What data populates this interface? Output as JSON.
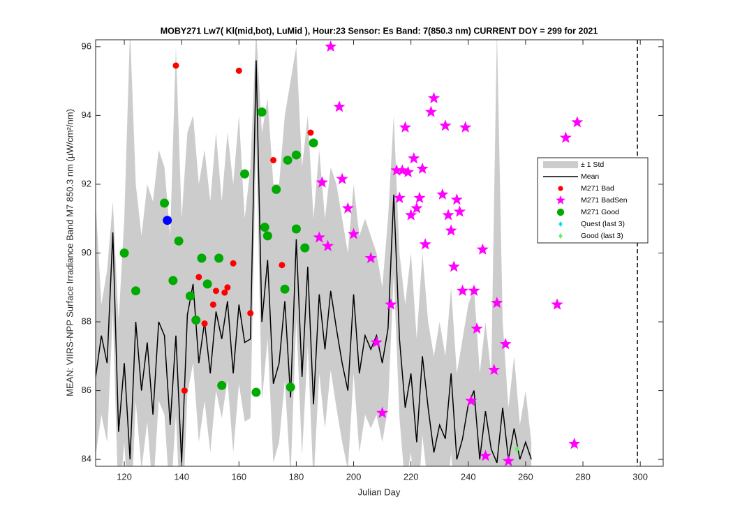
{
  "chart_data": {
    "type": "scatter",
    "title": "MOBY271   Lw7( Kl(mid,bot), LuMid ),    Hour:23 Sensor: Es Band: 7(850.3 nm)   CURRENT DOY = 299 for 2021",
    "xlabel": "Julian Day",
    "ylabel": "MEAN: VIIRS-NPP Surface Irradiance Band M7 850.3 nm (µW/cm²/nm)",
    "xlim": [
      110,
      308
    ],
    "ylim": [
      83.8,
      96.2
    ],
    "xticks": [
      120,
      140,
      160,
      180,
      200,
      220,
      240,
      260,
      280,
      300
    ],
    "yticks": [
      84,
      86,
      88,
      90,
      92,
      94,
      96
    ],
    "current_doy": 299,
    "x": [
      110,
      112,
      114,
      116,
      118,
      120,
      122,
      124,
      126,
      128,
      130,
      132,
      134,
      136,
      138,
      140,
      142,
      144,
      146,
      148,
      150,
      152,
      154,
      156,
      158,
      160,
      162,
      164,
      166,
      168,
      170,
      172,
      174,
      176,
      178,
      180,
      182,
      184,
      186,
      188,
      190,
      192,
      194,
      196,
      198,
      200,
      202,
      204,
      206,
      208,
      210,
      212,
      214,
      216,
      218,
      220,
      222,
      224,
      226,
      228,
      230,
      232,
      234,
      236,
      238,
      240,
      242,
      244,
      246,
      248,
      250,
      252,
      254,
      256,
      258,
      260,
      262
    ],
    "band": {
      "name": "± 1 Std",
      "color": "#cccccc",
      "upper": [
        91.5,
        88.5,
        89.5,
        91.5,
        88,
        91,
        96.5,
        92,
        90.5,
        92,
        91.5,
        93,
        92.5,
        90.5,
        96,
        91,
        93.5,
        94,
        92,
        93,
        91.5,
        93.5,
        91.5,
        93.5,
        92,
        94,
        91,
        92.5,
        96.5,
        93.5,
        94.5,
        92,
        92,
        94,
        95,
        96,
        92.5,
        94,
        91,
        93,
        91,
        92.5,
        92,
        91,
        90,
        92,
        90.5,
        91,
        90.5,
        90,
        89,
        91,
        94,
        90,
        88.5,
        90,
        87.5,
        90,
        88,
        87,
        88,
        87,
        89,
        86.5,
        87.5,
        88.5,
        89,
        86.5,
        88,
        86.5,
        96.5,
        88,
        85.5,
        87,
        85,
        86,
        84.5
      ],
      "lower": [
        84.1,
        85.3,
        84.5,
        88.3,
        82.5,
        84.5,
        81.7,
        85.7,
        83.7,
        85.1,
        83.0,
        85.7,
        85.3,
        82.7,
        85.3,
        81.6,
        85.9,
        86.8,
        84.5,
        85.7,
        84.2,
        86.0,
        85.2,
        86.3,
        84.2,
        86.2,
        85.1,
        85.2,
        93.3,
        85.7,
        87.5,
        83.9,
        84.5,
        86.3,
        83.5,
        88.1,
        84.1,
        87.3,
        83.3,
        86.5,
        84.9,
        86.6,
        85.5,
        84.5,
        83.7,
        86.5,
        84.2,
        85.3,
        84.9,
        85.3,
        84.5,
        85.5,
        89.4,
        85.2,
        83.2,
        84.2,
        82.2,
        84.7,
        83.2,
        81.9,
        82.7,
        82.3,
        84.2,
        81.7,
        82.3,
        83.3,
        83.7,
        81.7,
        83.1,
        82.0,
        81.6,
        83.2,
        81.7,
        82.6,
        81.7,
        82.2,
        81.7
      ]
    },
    "mean": {
      "name": "Mean",
      "color": "#000000",
      "values": [
        86.4,
        87.6,
        86.8,
        90.6,
        84.8,
        86.8,
        84.0,
        88.0,
        86.0,
        87.4,
        85.3,
        88.0,
        87.6,
        85.0,
        87.6,
        83.9,
        88.2,
        89.1,
        86.8,
        88.0,
        86.5,
        88.3,
        87.5,
        88.6,
        86.5,
        88.5,
        87.4,
        87.5,
        95.6,
        88.0,
        89.8,
        86.2,
        86.8,
        88.6,
        85.8,
        90.4,
        86.4,
        89.6,
        85.6,
        88.8,
        87.2,
        88.9,
        87.8,
        86.8,
        86.0,
        88.8,
        86.5,
        87.6,
        87.2,
        87.6,
        86.8,
        87.8,
        91.7,
        87.5,
        85.5,
        86.5,
        84.5,
        87.0,
        85.5,
        84.2,
        85.0,
        84.6,
        86.5,
        84.0,
        84.6,
        85.6,
        86.0,
        84.0,
        85.4,
        84.3,
        83.9,
        85.5,
        84.0,
        84.9,
        84.0,
        84.5,
        84.0
      ]
    },
    "series": [
      {
        "name": "M271 Bad",
        "color": "#ff0000",
        "marker": "dot",
        "x": [
          138,
          160,
          185,
          172,
          146,
          158,
          156,
          152,
          155,
          151,
          148,
          164,
          175,
          141
        ],
        "values": [
          95.45,
          95.3,
          93.5,
          92.7,
          89.3,
          89.7,
          89.0,
          88.9,
          88.85,
          88.5,
          87.95,
          88.25,
          89.65,
          86.0
        ]
      },
      {
        "name": "M271 BadSen",
        "color": "#ff00ff",
        "marker": "star",
        "x": [
          192,
          195,
          228,
          227,
          218,
          232,
          239,
          278,
          274,
          189,
          196,
          215,
          217,
          219,
          221,
          224,
          216,
          223,
          231,
          236,
          222,
          198,
          220,
          233,
          237,
          200,
          188,
          191,
          234,
          225,
          245,
          206,
          235,
          238,
          242,
          250,
          271,
          213,
          208,
          243,
          253,
          249,
          210,
          241,
          246,
          254,
          277
        ],
        "values": [
          96.0,
          94.25,
          94.5,
          94.1,
          93.65,
          93.7,
          93.65,
          93.8,
          93.35,
          92.05,
          92.15,
          92.4,
          92.4,
          92.35,
          92.75,
          92.45,
          91.6,
          91.6,
          91.7,
          91.55,
          91.3,
          91.3,
          91.1,
          91.1,
          91.2,
          90.55,
          90.45,
          90.2,
          90.65,
          90.25,
          90.1,
          89.85,
          89.6,
          88.9,
          88.9,
          88.55,
          88.5,
          88.5,
          87.4,
          87.8,
          87.35,
          86.6,
          85.35,
          85.7,
          84.1,
          83.95,
          84.45
        ]
      },
      {
        "name": "M271 Good",
        "color": "#00aa00",
        "marker": "circle",
        "x": [
          168,
          186,
          180,
          177,
          162,
          173,
          134,
          120,
          139,
          169,
          170,
          180,
          183,
          147,
          153,
          124,
          137,
          149,
          176,
          143,
          145,
          154,
          166,
          178
        ],
        "values": [
          94.1,
          93.2,
          92.85,
          92.7,
          92.3,
          91.85,
          91.45,
          90.0,
          90.35,
          90.75,
          90.5,
          90.7,
          90.15,
          89.85,
          89.85,
          88.9,
          89.2,
          89.1,
          88.95,
          88.75,
          88.05,
          86.15,
          85.95,
          86.1
        ]
      },
      {
        "name": "Quest (last 3)",
        "color": "#00e5ee",
        "marker": "diamond",
        "x": [],
        "values": []
      },
      {
        "name": "Good (last 3)",
        "color": "#66ee66",
        "marker": "diamond",
        "x": [
          257
        ],
        "values": [
          84.3
        ]
      }
    ],
    "extra_points": {
      "color": "#0000ff",
      "x": [
        135
      ],
      "values": [
        90.95
      ]
    }
  }
}
